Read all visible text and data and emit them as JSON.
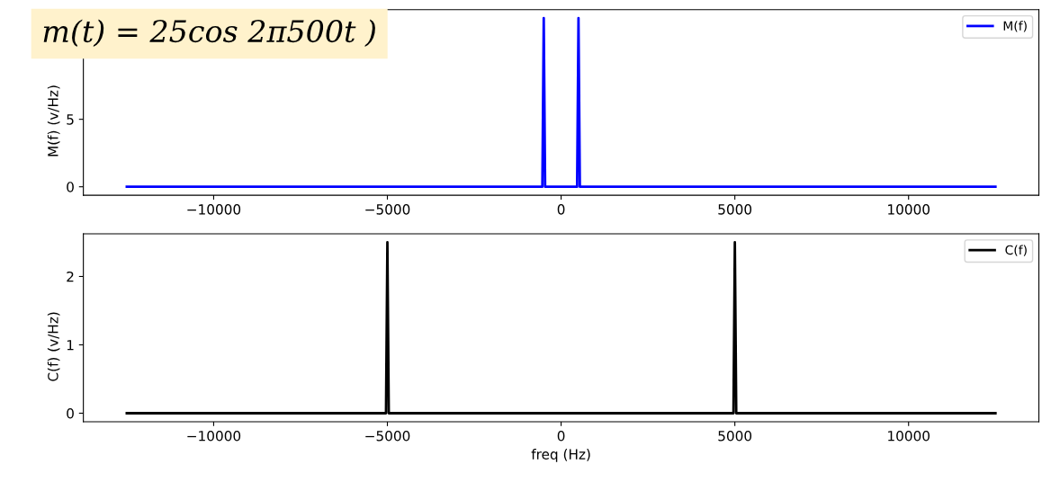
{
  "chart_data": [
    {
      "type": "line",
      "ylabel": "M(f) (v/Hz)",
      "annotations": [
        "m(t) = 25cos 2π500t )"
      ],
      "x": [
        -12500,
        -540,
        -500,
        -460,
        460,
        500,
        540,
        12500
      ],
      "series": [
        {
          "name": "M(f)",
          "color": "#0000ff",
          "values": [
            0,
            0,
            12.5,
            0,
            0,
            12.5,
            0,
            0
          ]
        }
      ],
      "xlim": [
        -13750,
        13750
      ],
      "xticks": [
        -10000,
        -5000,
        0,
        5000,
        10000
      ],
      "ylim": [
        -0.625,
        13.125
      ],
      "yticks": [
        0,
        5
      ],
      "legend": "top right",
      "grid": false
    },
    {
      "type": "line",
      "ylabel": "C(f) (v/Hz)",
      "xlabel": "freq (Hz)",
      "x": [
        -12500,
        -5040,
        -5000,
        -4960,
        4960,
        5000,
        5040,
        12500
      ],
      "series": [
        {
          "name": "C(f)",
          "color": "#000000",
          "values": [
            0,
            0,
            2.5,
            0,
            0,
            2.5,
            0,
            0
          ]
        }
      ],
      "xlim": [
        -13750,
        13750
      ],
      "xticks": [
        -10000,
        -5000,
        0,
        5000,
        10000
      ],
      "ylim": [
        -0.125,
        2.625
      ],
      "yticks": [
        0,
        1,
        2
      ],
      "legend": "top right",
      "grid": false
    }
  ]
}
